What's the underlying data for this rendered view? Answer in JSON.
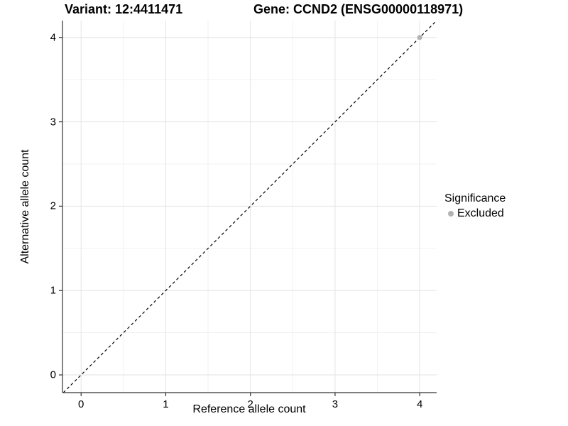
{
  "titles": {
    "left": "Variant: 12:4411471",
    "right": "Gene: CCND2 (ENSG00000118971)"
  },
  "legend": {
    "title": "Significance",
    "items": [
      {
        "label": "Excluded",
        "color": "#b3b3b3"
      }
    ]
  },
  "colors": {
    "background": "#ffffff",
    "grid_major": "#e3e3e3",
    "grid_minor": "#f1f1f1",
    "axis": "#333333",
    "text": "#000000"
  },
  "chart_data": {
    "type": "scatter",
    "title": "Variant: 12:4411471    Gene: CCND2 (ENSG00000118971)",
    "xlabel": "Reference allele count",
    "ylabel": "Alternative allele count",
    "xlim": [
      -0.22,
      4.2
    ],
    "ylim": [
      -0.21,
      4.2
    ],
    "x_ticks": [
      0,
      1,
      2,
      3,
      4
    ],
    "y_ticks": [
      0,
      1,
      2,
      3,
      4
    ],
    "minor_ticks_x": [
      0.5,
      1.5,
      2.5,
      3.5
    ],
    "minor_ticks_y": [
      0.5,
      1.5,
      2.5,
      3.5
    ],
    "grid": true,
    "legend_position": "right",
    "series": [
      {
        "name": "Excluded",
        "color": "#b3b3b3",
        "point_radius": 3.5,
        "points": [
          {
            "x": 4,
            "y": 4
          }
        ]
      }
    ],
    "reference_line": {
      "type": "identity",
      "slope": 1,
      "intercept": 0,
      "style": "dashed",
      "color": "#000000"
    }
  }
}
